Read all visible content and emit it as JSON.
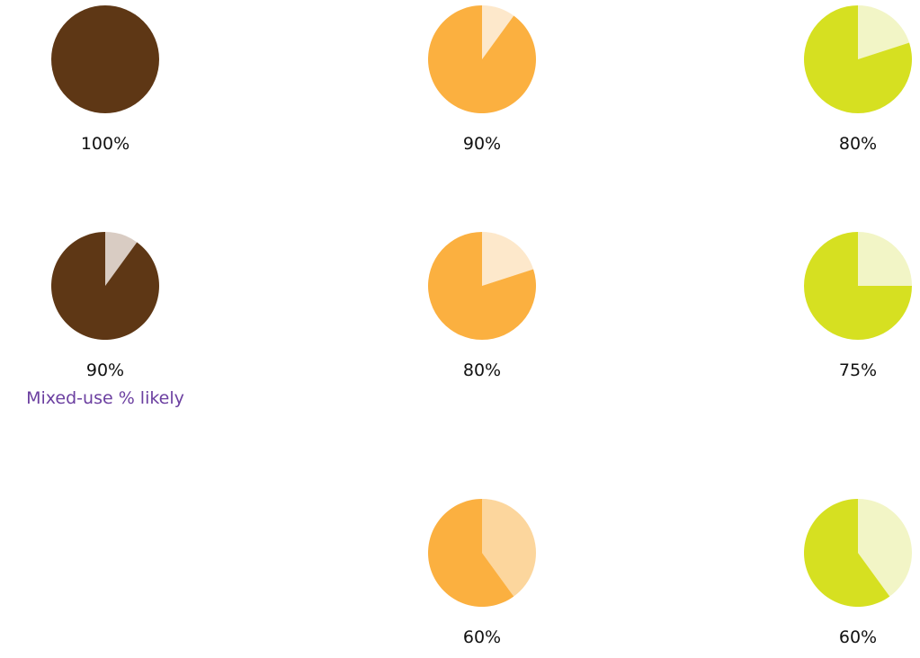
{
  "chart_data": {
    "type": "pie",
    "colors": {
      "brown": "#5e3715",
      "brown_light": "#d9ccc3",
      "orange": "#fbb040",
      "orange_light": "#fde8cb",
      "orange_mid": "#fcd69d",
      "lime": "#d6e021",
      "lime_light": "#f2f5c6",
      "note": "#6b3fa0"
    },
    "pies": [
      {
        "id": "brown-100",
        "percent": 100,
        "label": "100%",
        "color": "brown",
        "remainder_color": "brown_light",
        "note": ""
      },
      {
        "id": "orange-90",
        "percent": 90,
        "label": "90%",
        "color": "orange",
        "remainder_color": "orange_light",
        "note": ""
      },
      {
        "id": "lime-80",
        "percent": 80,
        "label": "80%",
        "color": "lime",
        "remainder_color": "lime_light",
        "note": ""
      },
      {
        "id": "brown-90",
        "percent": 90,
        "label": "90%",
        "color": "brown",
        "remainder_color": "brown_light",
        "note": "Mixed-use % likely"
      },
      {
        "id": "orange-80",
        "percent": 80,
        "label": "80%",
        "color": "orange",
        "remainder_color": "orange_light",
        "note": ""
      },
      {
        "id": "lime-75",
        "percent": 75,
        "label": "75%",
        "color": "lime",
        "remainder_color": "lime_light",
        "note": ""
      },
      {
        "id": "orange-60",
        "percent": 60,
        "label": "60%",
        "color": "orange",
        "remainder_color": "orange_mid",
        "note": ""
      },
      {
        "id": "lime-60",
        "percent": 60,
        "label": "60%",
        "color": "lime",
        "remainder_color": "lime_light",
        "note": ""
      }
    ]
  }
}
